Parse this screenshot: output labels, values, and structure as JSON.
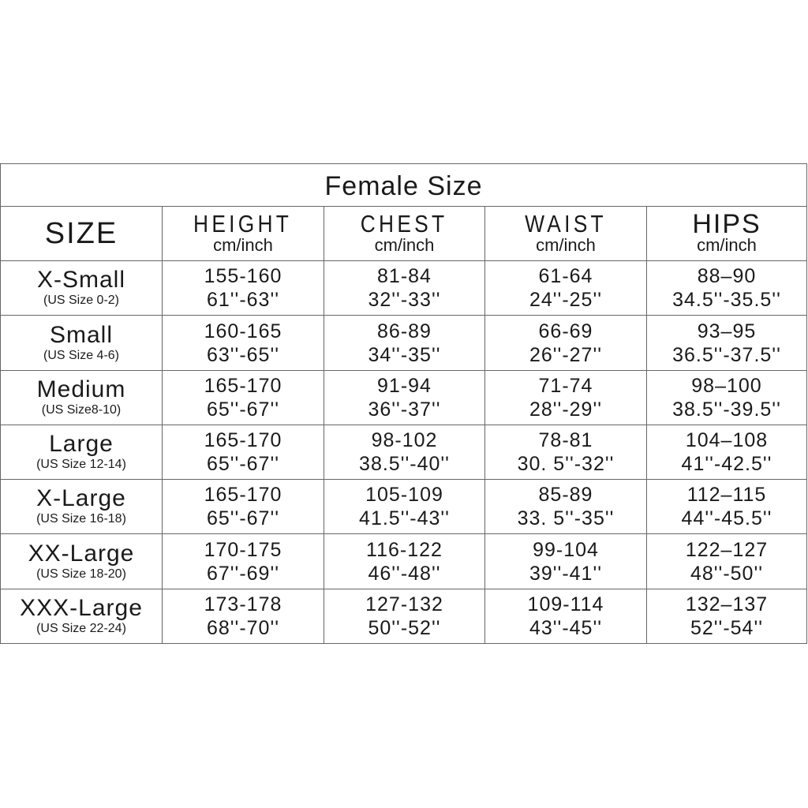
{
  "title": "Female Size",
  "headers": [
    {
      "name": "SIZE",
      "unit": ""
    },
    {
      "name": "HEIGHT",
      "unit": "cm/inch"
    },
    {
      "name": "CHEST",
      "unit": "cm/inch"
    },
    {
      "name": "WAIST",
      "unit": "cm/inch"
    },
    {
      "name": "HIPS",
      "unit": "cm/inch"
    }
  ],
  "rows": [
    {
      "size": "X-Small",
      "us": "(US Size 0-2)",
      "height": [
        "155-160",
        "61''-63''"
      ],
      "chest": [
        "81-84",
        "32''-33''"
      ],
      "waist": [
        "61-64",
        "24''-25''"
      ],
      "hips": [
        "88–90",
        "34.5''-35.5''"
      ]
    },
    {
      "size": "Small",
      "us": "(US Size 4-6)",
      "height": [
        "160-165",
        "63''-65''"
      ],
      "chest": [
        "86-89",
        "34''-35''"
      ],
      "waist": [
        "66-69",
        "26''-27''"
      ],
      "hips": [
        "93–95",
        "36.5''-37.5''"
      ]
    },
    {
      "size": "Medium",
      "us": "(US Size8-10)",
      "height": [
        "165-170",
        "65''-67''"
      ],
      "chest": [
        "91-94",
        "36''-37''"
      ],
      "waist": [
        "71-74",
        "28''-29''"
      ],
      "hips": [
        "98–100",
        "38.5''-39.5''"
      ]
    },
    {
      "size": "Large",
      "us": "(US Size 12-14)",
      "height": [
        "165-170",
        "65''-67''"
      ],
      "chest": [
        "98-102",
        "38.5''-40''"
      ],
      "waist": [
        "78-81",
        "30. 5''-32''"
      ],
      "hips": [
        "104–108",
        "41''-42.5''"
      ]
    },
    {
      "size": "X-Large",
      "us": "(US Size 16-18)",
      "height": [
        "165-170",
        "65''-67''"
      ],
      "chest": [
        "105-109",
        "41.5''-43''"
      ],
      "waist": [
        "85-89",
        "33. 5''-35''"
      ],
      "hips": [
        "112–115",
        "44''-45.5''"
      ]
    },
    {
      "size": "XX-Large",
      "us": "(US Size 18-20)",
      "height": [
        "170-175",
        "67''-69''"
      ],
      "chest": [
        "116-122",
        "46''-48''"
      ],
      "waist": [
        "99-104",
        "39''-41''"
      ],
      "hips": [
        "122–127",
        "48''-50''"
      ]
    },
    {
      "size": "XXX-Large",
      "us": "(US Size 22-24)",
      "height": [
        "173-178",
        "68''-70''"
      ],
      "chest": [
        "127-132",
        "50''-52''"
      ],
      "waist": [
        "109-114",
        "43''-45''"
      ],
      "hips": [
        "132–137",
        "52''-54''"
      ]
    }
  ]
}
